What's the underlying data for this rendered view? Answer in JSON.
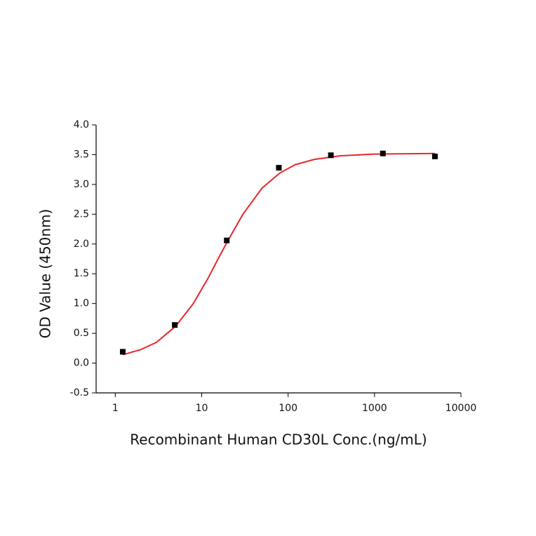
{
  "chart_data": {
    "type": "scatter",
    "x_label": "Recombinant Human CD30L Conc.(ng/mL)",
    "y_label": "OD Value (450nm)",
    "x_log": true,
    "xlim": [
      0.6,
      10000
    ],
    "xticks": [
      1,
      10,
      100,
      1000,
      10000
    ],
    "ylim": [
      -0.5,
      4.0
    ],
    "yticks": [
      -0.5,
      {
        "value": 0,
        "label": "0.0"
      },
      0.5,
      {
        "value": 1,
        "label": "1.0"
      },
      1.5,
      {
        "value": 2,
        "label": "2.0"
      },
      2.5,
      {
        "value": 3,
        "label": "3.0"
      },
      3.5,
      {
        "value": 4,
        "label": "4.0"
      }
    ],
    "series": [
      {
        "kind": "points",
        "color": "#000000",
        "x": [
          1.22,
          4.88,
          19.5,
          78.1,
          312.5,
          1250,
          5000
        ],
        "values": [
          0.19,
          0.64,
          2.06,
          3.28,
          3.49,
          3.52,
          3.47
        ]
      },
      {
        "kind": "line",
        "color": "#e8262b",
        "x": [
          1.22,
          2,
          3,
          5,
          8,
          12,
          16,
          20,
          30,
          50,
          80,
          120,
          200,
          400,
          1000,
          5000
        ],
        "values": [
          0.14,
          0.23,
          0.35,
          0.62,
          1.0,
          1.44,
          1.79,
          2.05,
          2.5,
          2.94,
          3.19,
          3.33,
          3.42,
          3.48,
          3.51,
          3.52
        ]
      }
    ]
  }
}
